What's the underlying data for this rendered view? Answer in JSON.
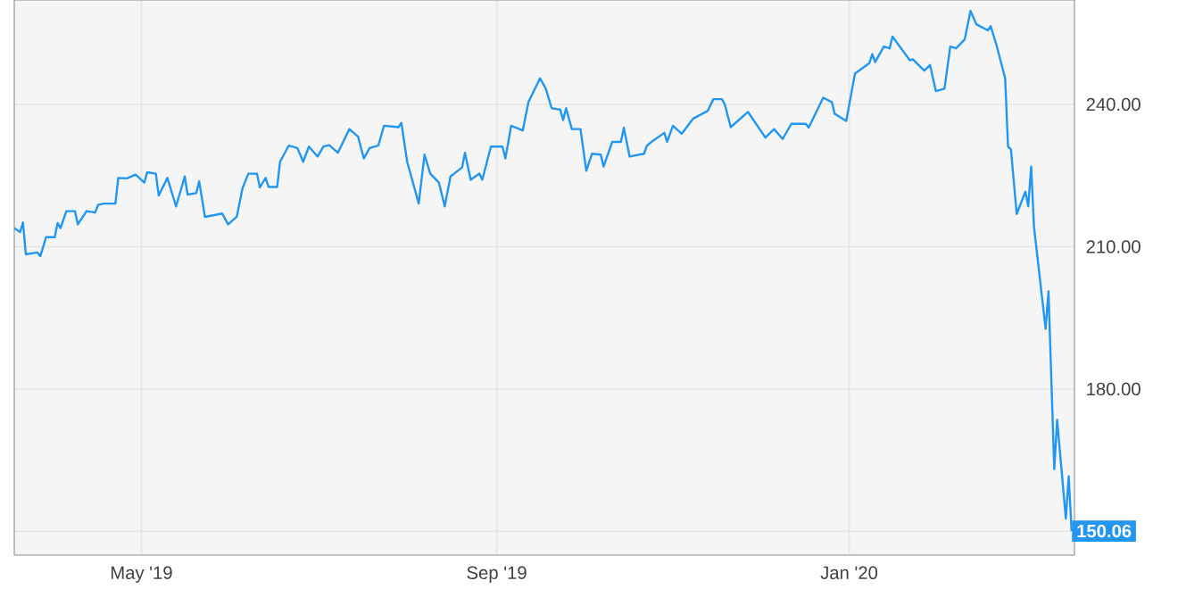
{
  "chart_data": {
    "type": "line",
    "x": [
      "2019-03-18",
      "2019-03-20",
      "2019-03-21",
      "2019-03-22",
      "2019-03-26",
      "2019-03-27",
      "2019-03-29",
      "2019-04-01",
      "2019-04-02",
      "2019-04-03",
      "2019-04-05",
      "2019-04-08",
      "2019-04-09",
      "2019-04-12",
      "2019-04-15",
      "2019-04-16",
      "2019-04-18",
      "2019-04-22",
      "2019-04-23",
      "2019-04-26",
      "2019-04-29",
      "2019-05-02",
      "2019-05-03",
      "2019-05-06",
      "2019-05-07",
      "2019-05-10",
      "2019-05-13",
      "2019-05-16",
      "2019-05-17",
      "2019-05-20",
      "2019-05-21",
      "2019-05-23",
      "2019-05-29",
      "2019-05-31",
      "2019-06-03",
      "2019-06-05",
      "2019-06-07",
      "2019-06-10",
      "2019-06-11",
      "2019-06-13",
      "2019-06-14",
      "2019-06-17",
      "2019-06-18",
      "2019-06-21",
      "2019-06-24",
      "2019-06-26",
      "2019-06-28",
      "2019-07-01",
      "2019-07-03",
      "2019-07-05",
      "2019-07-08",
      "2019-07-12",
      "2019-07-15",
      "2019-07-17",
      "2019-07-19",
      "2019-07-22",
      "2019-07-24",
      "2019-07-29",
      "2019-07-30",
      "2019-08-01",
      "2019-08-05",
      "2019-08-07",
      "2019-08-09",
      "2019-08-12",
      "2019-08-14",
      "2019-08-16",
      "2019-08-20",
      "2019-08-21",
      "2019-08-23",
      "2019-08-26",
      "2019-08-27",
      "2019-08-30",
      "2019-09-03",
      "2019-09-04",
      "2019-09-06",
      "2019-09-10",
      "2019-09-12",
      "2019-09-16",
      "2019-09-18",
      "2019-09-20",
      "2019-09-23",
      "2019-09-24",
      "2019-09-25",
      "2019-09-27",
      "2019-09-30",
      "2019-10-02",
      "2019-10-04",
      "2019-10-07",
      "2019-10-08",
      "2019-10-11",
      "2019-10-14",
      "2019-10-15",
      "2019-10-17",
      "2019-10-22",
      "2019-10-23",
      "2019-10-25",
      "2019-10-29",
      "2019-10-30",
      "2019-11-01",
      "2019-11-04",
      "2019-11-08",
      "2019-11-13",
      "2019-11-15",
      "2019-11-18",
      "2019-11-19",
      "2019-11-21",
      "2019-11-27",
      "2019-12-03",
      "2019-12-06",
      "2019-12-09",
      "2019-12-12",
      "2019-12-17",
      "2019-12-18",
      "2019-12-23",
      "2019-12-26",
      "2019-12-27",
      "2019-12-31",
      "2020-01-03",
      "2020-01-08",
      "2020-01-09",
      "2020-01-10",
      "2020-01-13",
      "2020-01-15",
      "2020-01-16",
      "2020-01-22",
      "2020-01-23",
      "2020-01-27",
      "2020-01-29",
      "2020-01-31",
      "2020-02-03",
      "2020-02-05",
      "2020-02-07",
      "2020-02-10",
      "2020-02-12",
      "2020-02-14",
      "2020-02-18",
      "2020-02-19",
      "2020-02-21",
      "2020-02-24",
      "2020-02-25",
      "2020-02-26",
      "2020-02-28",
      "2020-03-02",
      "2020-03-03",
      "2020-03-04",
      "2020-03-05",
      "2020-03-09",
      "2020-03-10",
      "2020-03-12",
      "2020-03-13",
      "2020-03-16",
      "2020-03-17",
      "2020-03-18"
    ],
    "series": [
      {
        "color": "#2196f3",
        "values": [
          213.9,
          213.1,
          215.1,
          208.4,
          208.8,
          208.0,
          212.0,
          212.0,
          215.0,
          213.9,
          217.5,
          217.5,
          214.7,
          217.5,
          217.2,
          218.8,
          219.1,
          219.1,
          224.5,
          224.4,
          225.2,
          223.5,
          225.7,
          225.4,
          220.8,
          224.5,
          218.5,
          224.8,
          221.0,
          221.3,
          223.8,
          216.3,
          217.0,
          214.7,
          216.3,
          222.3,
          225.4,
          225.4,
          222.5,
          224.5,
          222.6,
          222.6,
          227.9,
          231.3,
          230.8,
          227.9,
          231.1,
          229.0,
          231.1,
          231.4,
          229.8,
          234.8,
          233.2,
          228.6,
          230.8,
          231.3,
          235.5,
          235.2,
          236.1,
          227.9,
          219.1,
          229.4,
          225.4,
          223.5,
          218.5,
          224.8,
          226.7,
          229.8,
          224.1,
          225.4,
          224.1,
          231.1,
          231.1,
          228.6,
          235.5,
          234.5,
          240.5,
          245.5,
          243.3,
          239.2,
          238.9,
          236.7,
          239.2,
          234.8,
          234.8,
          226.0,
          229.6,
          229.4,
          226.9,
          232.1,
          232.1,
          235.1,
          229.0,
          229.6,
          231.3,
          232.3,
          234.0,
          232.1,
          235.5,
          233.8,
          237.0,
          238.6,
          241.1,
          241.1,
          239.9,
          235.2,
          238.4,
          233.0,
          234.8,
          232.7,
          235.9,
          235.9,
          235.1,
          241.4,
          240.5,
          238.0,
          236.5,
          246.5,
          248.7,
          250.6,
          248.9,
          252.2,
          251.8,
          254.3,
          249.3,
          249.5,
          247.1,
          248.3,
          242.8,
          243.3,
          252.2,
          251.8,
          253.7,
          259.7,
          256.9,
          255.6,
          256.5,
          252.5,
          245.5,
          231.1,
          230.5,
          216.9,
          221.6,
          218.5,
          226.9,
          214.1,
          192.7,
          200.6,
          163.1,
          173.5,
          152.7,
          161.6,
          150.06
        ]
      }
    ],
    "xlim": [
      "2019-03-18",
      "2020-03-19"
    ],
    "ylim": [
      145,
      262
    ],
    "xticks": [
      {
        "value": "2019-05-01",
        "label": "May '19"
      },
      {
        "value": "2019-09-01",
        "label": "Sep '19"
      },
      {
        "value": "2020-01-01",
        "label": "Jan '20"
      }
    ],
    "yticks": [
      {
        "value": 150,
        "label": null
      },
      {
        "value": 180,
        "label": "180.00"
      },
      {
        "value": 210,
        "label": "210.00"
      },
      {
        "value": 240,
        "label": "240.00"
      }
    ],
    "grid": true,
    "annotations": [
      {
        "text": "150.06",
        "x": "2020-03-18",
        "y": 150.06
      }
    ]
  }
}
